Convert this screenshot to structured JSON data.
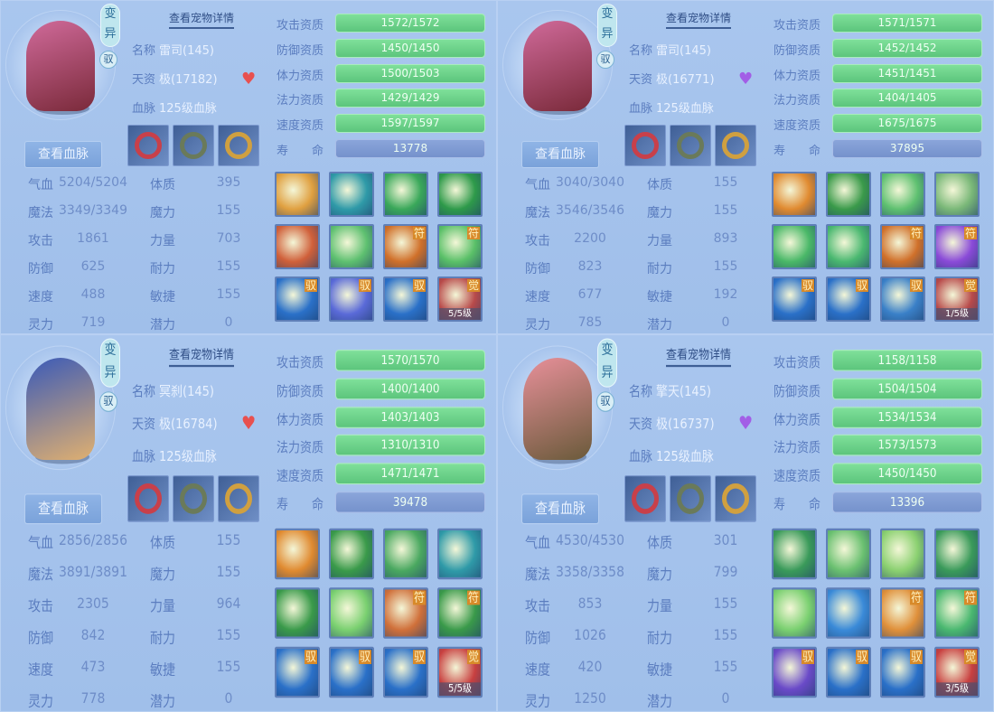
{
  "common": {
    "details_link": "查看宠物详情",
    "bloodline_button": "查看血脉",
    "mutation_badge": "变异",
    "yu_badge": "驭",
    "name_label": "名称",
    "talent_label": "天资",
    "bloodline_label": "血脉",
    "aptitude_labels": [
      "攻击资质",
      "防御资质",
      "体力资质",
      "法力资质",
      "速度资质",
      "寿　　命"
    ],
    "stat_labels_left": [
      "气血",
      "魔法",
      "攻击",
      "防御",
      "速度",
      "灵力"
    ],
    "stat_labels_right": [
      "体质",
      "魔力",
      "力量",
      "耐力",
      "敏捷",
      "潜力"
    ]
  },
  "colors": {
    "heart_red": "#e8504f",
    "heart_purple": "#a25ee6",
    "bar_green": "#6ed48c",
    "lifespan_bar": "#7f9bd3",
    "panel_bg": "#a6c3ec"
  },
  "pets": [
    {
      "name": "雷司(145)",
      "talent": "极(17182)",
      "heart": "red",
      "bloodline": "125级血脉",
      "aptitudes": [
        "1572/1572",
        "1450/1450",
        "1500/1503",
        "1429/1429",
        "1597/1597",
        "13778"
      ],
      "stats_left": [
        "5204/5204",
        "3349/3349",
        "1861",
        "625",
        "488",
        "719"
      ],
      "stats_right": [
        "395",
        "155",
        "703",
        "155",
        "155",
        "0"
      ],
      "equipment": [
        "collar-icon",
        "armor-icon",
        "necklace-icon"
      ],
      "skills": [
        {
          "icon": "sword-slash-icon",
          "c": "#e0a040"
        },
        {
          "icon": "silhouette-icon",
          "c": "#2f9aa8"
        },
        {
          "icon": "green-man-icon",
          "c": "#3aa85a"
        },
        {
          "icon": "horse-icon",
          "c": "#2e9a4a"
        },
        {
          "icon": "shield-card-icon",
          "c": "#d0603a"
        },
        {
          "icon": "green-burst-icon",
          "c": "#5ec070"
        },
        {
          "icon": "fire-warrior-icon",
          "c": "#d0702a",
          "badge": "符"
        },
        {
          "icon": "green-figure-icon",
          "c": "#5ac068",
          "badge": "符"
        },
        {
          "icon": "blue-shield-icon",
          "c": "#2a70c8",
          "badge": "驭"
        },
        {
          "icon": "crystal-icon",
          "c": "#5a6ad8",
          "badge": "驭"
        },
        {
          "icon": "dash-icon",
          "c": "#2a70c8",
          "badge": "驭"
        },
        {
          "icon": "awaken-icon",
          "c": "#b84a4a",
          "badge": "觉",
          "level": "5/5级"
        }
      ]
    },
    {
      "name": "雷司(145)",
      "talent": "极(16771)",
      "heart": "purple",
      "bloodline": "125级血脉",
      "aptitudes": [
        "1571/1571",
        "1452/1452",
        "1451/1451",
        "1404/1405",
        "1675/1675",
        "37895"
      ],
      "stats_left": [
        "3040/3040",
        "3546/3546",
        "2200",
        "823",
        "677",
        "785"
      ],
      "stats_right": [
        "155",
        "155",
        "893",
        "155",
        "192",
        "0"
      ],
      "equipment": [
        "collar-icon",
        "armor-icon",
        "necklace-icon"
      ],
      "skills": [
        {
          "icon": "flame-sword-icon",
          "c": "#e08a30"
        },
        {
          "icon": "green-brute-icon",
          "c": "#3a9a4a"
        },
        {
          "icon": "light-man-icon",
          "c": "#5ec070"
        },
        {
          "icon": "boot-icon",
          "c": "#7ab878"
        },
        {
          "icon": "green-panel-icon",
          "c": "#4ab868"
        },
        {
          "icon": "green-shield-icon",
          "c": "#4ab870"
        },
        {
          "icon": "fire-warrior-icon",
          "c": "#d0702a",
          "badge": "符"
        },
        {
          "icon": "purple-burst-icon",
          "c": "#8a4ad8",
          "badge": "符"
        },
        {
          "icon": "blue-shield-icon",
          "c": "#2a70c8",
          "badge": "驭"
        },
        {
          "icon": "blue-beast-icon",
          "c": "#2a70c8",
          "badge": "驭"
        },
        {
          "icon": "blue-blade-icon",
          "c": "#3a80c8",
          "badge": "驭"
        },
        {
          "icon": "awaken-icon",
          "c": "#b84a4a",
          "badge": "觉",
          "level": "1/5级"
        }
      ]
    },
    {
      "name": "冥刹(145)",
      "talent": "极(16784)",
      "heart": "red",
      "bloodline": "125级血脉",
      "aptitudes": [
        "1570/1570",
        "1400/1400",
        "1403/1403",
        "1310/1310",
        "1471/1471",
        "39478"
      ],
      "stats_left": [
        "2856/2856",
        "3891/3891",
        "2305",
        "842",
        "473",
        "778"
      ],
      "stats_right": [
        "155",
        "155",
        "964",
        "155",
        "155",
        "0"
      ],
      "equipment": [
        "collar-icon",
        "armor-icon",
        "necklace-icon"
      ],
      "skills": [
        {
          "icon": "flame-sword-icon",
          "c": "#e08a30"
        },
        {
          "icon": "green-brute-icon",
          "c": "#3a9a4a"
        },
        {
          "icon": "twin-fighters-icon",
          "c": "#4aa860"
        },
        {
          "icon": "silhouette-icon",
          "c": "#2f9aa8"
        },
        {
          "icon": "green-warrior-icon",
          "c": "#3a9a4a"
        },
        {
          "icon": "heart-icon",
          "c": "#7ad070"
        },
        {
          "icon": "shield-card-icon",
          "c": "#d0703a",
          "badge": "符"
        },
        {
          "icon": "green-brute-icon",
          "c": "#3a9a4a",
          "badge": "符"
        },
        {
          "icon": "wave-icon",
          "c": "#2a70c8",
          "badge": "驭"
        },
        {
          "icon": "blue-blade-icon",
          "c": "#2a70c8",
          "badge": "驭"
        },
        {
          "icon": "dash-icon",
          "c": "#2a70c8",
          "badge": "驭"
        },
        {
          "icon": "awaken-icon",
          "c": "#c84040",
          "badge": "觉",
          "level": "5/5级"
        }
      ]
    },
    {
      "name": "擎天(145)",
      "talent": "极(16737)",
      "heart": "purple",
      "bloodline": "125级血脉",
      "aptitudes": [
        "1158/1158",
        "1504/1504",
        "1534/1534",
        "1573/1573",
        "1450/1450",
        "13396"
      ],
      "stats_left": [
        "4530/4530",
        "3358/3358",
        "853",
        "1026",
        "420",
        "1250"
      ],
      "stats_right": [
        "301",
        "799",
        "155",
        "155",
        "155",
        "0"
      ],
      "equipment": [
        "collar-icon",
        "armor-icon",
        "necklace-icon"
      ],
      "skills": [
        {
          "icon": "green-man-icon",
          "c": "#3a9a5a"
        },
        {
          "icon": "hand-icon",
          "c": "#6ac070"
        },
        {
          "icon": "palm-icon",
          "c": "#8ad070"
        },
        {
          "icon": "cat-icon",
          "c": "#3a9a5a"
        },
        {
          "icon": "heart-icon",
          "c": "#7ad070"
        },
        {
          "icon": "lightning-icon",
          "c": "#3a8ad8"
        },
        {
          "icon": "crest-icon",
          "c": "#e0903a",
          "badge": "符"
        },
        {
          "icon": "green-shield-icon",
          "c": "#4ab870",
          "badge": "符"
        },
        {
          "icon": "wolf-icon",
          "c": "#6a4ac8",
          "badge": "驭"
        },
        {
          "icon": "blue-shield-icon",
          "c": "#2a70c8",
          "badge": "驭"
        },
        {
          "icon": "blue-beast-icon",
          "c": "#2a70c8",
          "badge": "驭"
        },
        {
          "icon": "awaken-icon",
          "c": "#c84040",
          "badge": "觉",
          "level": "3/5级"
        }
      ]
    }
  ]
}
